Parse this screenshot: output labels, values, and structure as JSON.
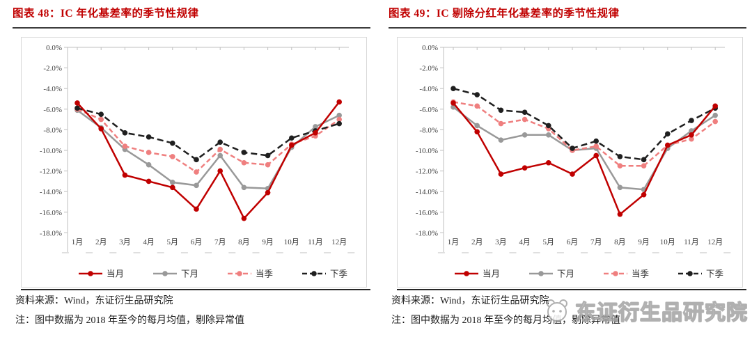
{
  "colors": {
    "title_red": "#c00000",
    "series_red": "#c00000",
    "series_gray": "#999999",
    "series_pink": "#ef7f7f",
    "series_black": "#1f1f1f",
    "axis_line": "#bfbfbf",
    "axis_text": "#404040",
    "box_border": "#d9d9d9"
  },
  "panels": [
    {
      "title": "图表 48：IC 年化基差率的季节性规律",
      "source": "资料来源：Wind，东证衍生品研究院",
      "note": "注：图中数据为 2018 年至今的每月均值，剔除异常值"
    },
    {
      "title": "图表 49：IC 剔除分红年化基差率的季节性规律",
      "source": "资料来源：Wind，东证衍生品研究院",
      "note": "注：图中数据为 2018 年至今的每月均值，剔除异常值"
    }
  ],
  "chart_data": [
    {
      "type": "line",
      "title": "图表 48：IC 年化基差率的季节性规律",
      "categories": [
        "1月",
        "2月",
        "3月",
        "4月",
        "5月",
        "6月",
        "7月",
        "8月",
        "9月",
        "10月",
        "11月",
        "12月"
      ],
      "series": [
        {
          "name": "当月",
          "color": "#c00000",
          "dash": "solid",
          "values": [
            -5.4,
            -7.9,
            -12.4,
            -13.0,
            -13.6,
            -15.7,
            -12.0,
            -16.6,
            -14.1,
            -9.5,
            -8.3,
            -5.3
          ]
        },
        {
          "name": "下月",
          "color": "#999999",
          "dash": "solid",
          "values": [
            -6.1,
            -7.8,
            -9.9,
            -11.4,
            -13.1,
            -13.4,
            -10.5,
            -13.6,
            -13.7,
            -9.7,
            -7.7,
            -6.6
          ]
        },
        {
          "name": "当季",
          "color": "#ef7f7f",
          "dash": "dashed",
          "values": [
            -6.0,
            -7.0,
            -9.6,
            -10.2,
            -10.6,
            -12.1,
            -9.9,
            -11.2,
            -11.4,
            -9.4,
            -8.6,
            -7.0
          ]
        },
        {
          "name": "下季",
          "color": "#1f1f1f",
          "dash": "dashed",
          "values": [
            -5.9,
            -6.5,
            -8.3,
            -8.7,
            -9.3,
            -10.9,
            -9.2,
            -10.2,
            -10.5,
            -8.8,
            -8.1,
            -7.4
          ]
        }
      ],
      "ylim": [
        -18,
        0
      ],
      "ytick_step": 2,
      "ytick_labels": [
        "0.0%",
        "-2.0%",
        "-4.0%",
        "-6.0%",
        "-8.0%",
        "-10.0%",
        "-12.0%",
        "-14.0%",
        "-16.0%",
        "-18.0%"
      ],
      "grid": false,
      "legend_position": "bottom"
    },
    {
      "type": "line",
      "title": "图表 49：IC 剔除分红年化基差率的季节性规律",
      "categories": [
        "1月",
        "2月",
        "3月",
        "4月",
        "5月",
        "6月",
        "7月",
        "8月",
        "9月",
        "10月",
        "11月",
        "12月"
      ],
      "series": [
        {
          "name": "当月",
          "color": "#c00000",
          "dash": "solid",
          "values": [
            -5.4,
            -8.2,
            -12.3,
            -11.7,
            -11.2,
            -12.3,
            -10.5,
            -16.2,
            -14.3,
            -9.5,
            -8.5,
            -5.7
          ]
        },
        {
          "name": "下月",
          "color": "#999999",
          "dash": "solid",
          "values": [
            -5.8,
            -7.6,
            -9.0,
            -8.5,
            -8.5,
            -10.0,
            -9.8,
            -13.6,
            -13.8,
            -9.8,
            -8.1,
            -6.6
          ]
        },
        {
          "name": "当季",
          "color": "#ef7f7f",
          "dash": "dashed",
          "values": [
            -5.3,
            -5.7,
            -7.4,
            -7.0,
            -7.9,
            -10.0,
            -9.6,
            -11.5,
            -11.5,
            -9.5,
            -8.9,
            -7.2
          ]
        },
        {
          "name": "下季",
          "color": "#1f1f1f",
          "dash": "dashed",
          "values": [
            -4.0,
            -4.6,
            -6.1,
            -6.3,
            -7.6,
            -9.8,
            -9.1,
            -10.6,
            -10.9,
            -8.4,
            -7.1,
            -5.9
          ]
        }
      ],
      "ylim": [
        -18,
        0
      ],
      "ytick_step": 2,
      "ytick_labels": [
        "0.0%",
        "-2.0%",
        "-4.0%",
        "-6.0%",
        "-8.0%",
        "-10.0%",
        "-12.0%",
        "-14.0%",
        "-16.0%",
        "-18.0%"
      ],
      "grid": false,
      "legend_position": "bottom"
    }
  ],
  "watermark": {
    "text": "东证衍生品研究院",
    "logo": "panda-logo"
  }
}
